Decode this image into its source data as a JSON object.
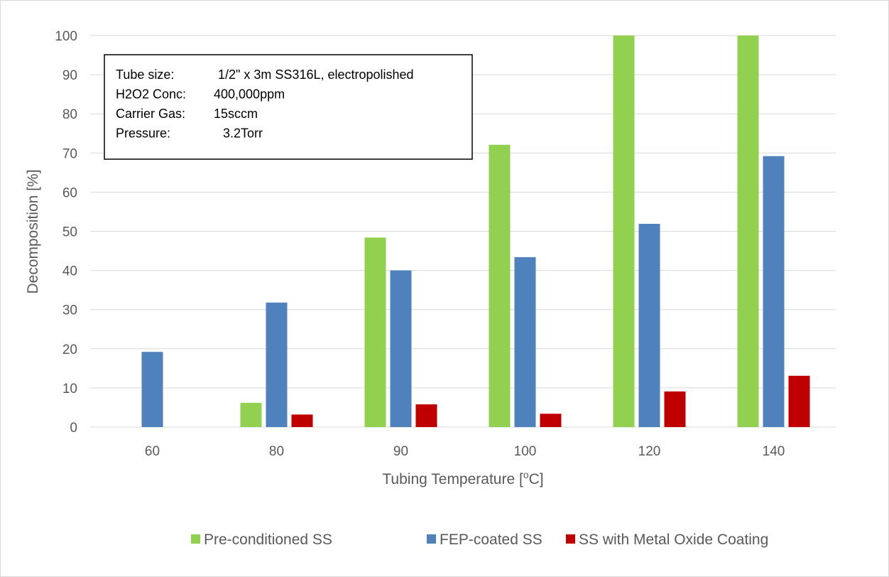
{
  "chart_data": {
    "type": "bar",
    "categories": [
      "60",
      "80",
      "90",
      "100",
      "120",
      "140"
    ],
    "series": [
      {
        "name": "Pre-conditioned SS",
        "color": "#92d050",
        "values": [
          0,
          6.2,
          48.4,
          72.1,
          100,
          100
        ]
      },
      {
        "name": "FEP-coated SS",
        "color": "#4f81bd",
        "values": [
          19.2,
          31.8,
          40.0,
          43.4,
          51.9,
          69.2
        ]
      },
      {
        "name": "SS with Metal Oxide Coating",
        "color": "#c00000",
        "values": [
          0,
          3.2,
          5.8,
          3.4,
          9.1,
          13.1
        ]
      }
    ],
    "ylim": [
      0,
      100
    ],
    "yticks": [
      0,
      10,
      20,
      30,
      40,
      50,
      60,
      70,
      80,
      90,
      100
    ],
    "xlabel_main": "Tubing Temperature [",
    "xlabel_sup": "o",
    "xlabel_tail": "C]",
    "ylabel": "Decomposition [%]",
    "grid": true,
    "legend_position": "bottom",
    "annotation": [
      {
        "key": "Tube size:",
        "value": "1/2\" x 3m SS316L, electropolished"
      },
      {
        "key": "H2O2 Conc:",
        "value": "400,000ppm"
      },
      {
        "key": "Carrier Gas:",
        "value": "15sccm"
      },
      {
        "key": "Pressure:",
        "value": "3.2Torr"
      }
    ]
  }
}
